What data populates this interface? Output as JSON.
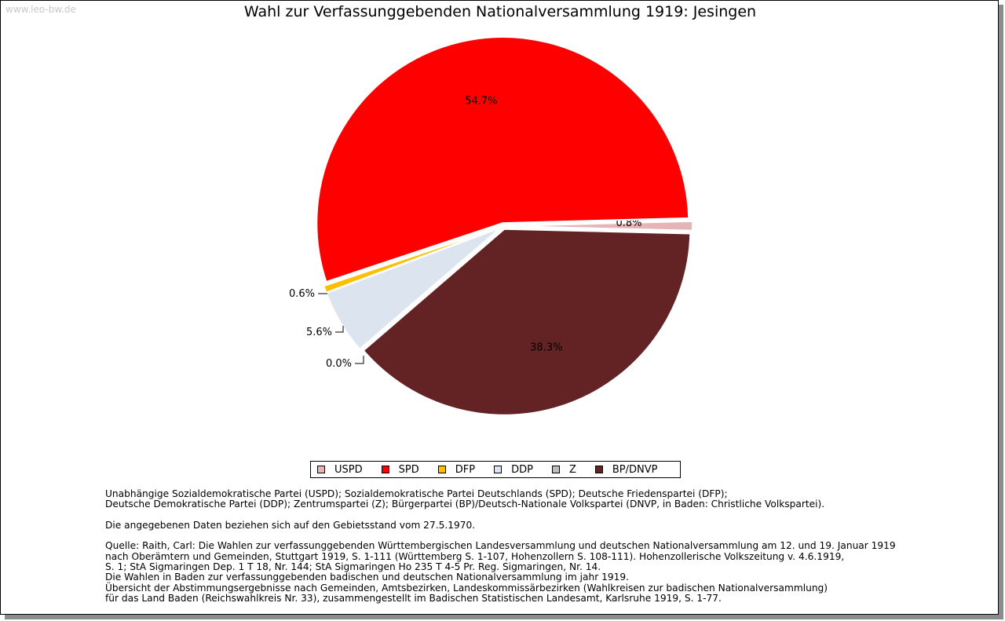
{
  "watermark": "www.leo-bw.de",
  "chart_data": {
    "type": "pie",
    "title": "Wahl zur Verfassunggebenden Nationalversammlung 1919: Jesingen",
    "slices": [
      {
        "name": "USPD",
        "value": 0.8,
        "label": "0.8%",
        "color": "#e6b4b4"
      },
      {
        "name": "BP/DNVP",
        "value": 38.3,
        "label": "38.3%",
        "color": "#632325"
      },
      {
        "name": "Z",
        "value": 0.0,
        "label": "0.0%",
        "color": "#bebebe"
      },
      {
        "name": "DDP",
        "value": 5.6,
        "label": "5.6%",
        "color": "#dce4f0"
      },
      {
        "name": "DFP",
        "value": 0.6,
        "label": "0.6%",
        "color": "#ffbe00"
      },
      {
        "name": "SPD",
        "value": 54.7,
        "label": "54.7%",
        "color": "#ff0000"
      }
    ],
    "legend": [
      {
        "name": "USPD",
        "color": "#e6b4b4"
      },
      {
        "name": "SPD",
        "color": "#ff0000"
      },
      {
        "name": "DFP",
        "color": "#ffbe00"
      },
      {
        "name": "DDP",
        "color": "#dce4f0"
      },
      {
        "name": "Z",
        "color": "#bebebe"
      },
      {
        "name": "BP/DNVP",
        "color": "#632325"
      }
    ],
    "legend_position": "bottom"
  },
  "notes": {
    "lines": [
      "Unabhängige Sozialdemokratische Partei (USPD); Sozialdemokratische Partei Deutschlands (SPD); Deutsche Friedenspartei (DFP);",
      "Deutsche Demokratische Partei (DDP); Zentrumspartei (Z); Bürgerpartei (BP)/Deutsch-Nationale Volkspartei (DNVP, in Baden: Christliche Volkspartei).",
      "",
      "Die angegebenen Daten beziehen sich auf den Gebietsstand vom 27.5.1970.",
      "",
      "Quelle: Raith, Carl: Die Wahlen zur verfassunggebenden Württembergischen Landesversammlung und deutschen Nationalversammlung am 12. und 19. Januar 1919",
      "nach Oberämtern und Gemeinden, Stuttgart 1919, S. 1-111 (Württemberg S. 1-107, Hohenzollern S. 108-111). Hohenzollerische Volkszeitung v. 4.6.1919,",
      "S. 1; StA Sigmaringen Dep. 1 T 18, Nr. 144; StA Sigmaringen Ho 235 T 4-5 Pr. Reg. Sigmaringen, Nr. 14.",
      "Die Wahlen in Baden zur verfassunggebenden badischen und deutschen Nationalversammlung im jahr 1919.",
      "Übersicht der Abstimmungsergebnisse nach Gemeinden, Amtsbezirken, Landeskommissärbezirken (Wahlkreisen zur badischen Nationalversammlung)",
      "für das Land Baden (Reichswahlkreis Nr. 33), zusammengestellt im Badischen Statistischen Landesamt, Karlsruhe 1919, S. 1-77."
    ]
  }
}
